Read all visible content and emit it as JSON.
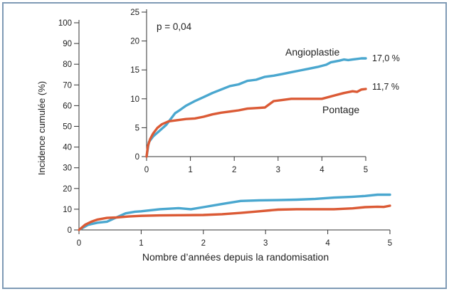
{
  "chart_data": {
    "type": "line",
    "colors": {
      "Angioplastie": "#4aa7cf",
      "Pontage": "#db5a35"
    },
    "main": {
      "ylabel": "Incidence cumulée (%)",
      "xlabel": "Nombre d’années depuis la randomisation",
      "xlim": [
        0,
        5
      ],
      "ylim": [
        0,
        100
      ],
      "x_ticks": [
        "0",
        "1",
        "2",
        "3",
        "4",
        "5"
      ],
      "y_ticks": [
        "0",
        "10",
        "20",
        "30",
        "40",
        "50",
        "60",
        "70",
        "80",
        "90",
        "100"
      ],
      "series": [
        {
          "key": "Angioplastie",
          "x": [
            0,
            0.15,
            0.3,
            0.45,
            0.6,
            0.75,
            0.9,
            1.0,
            1.3,
            1.6,
            1.8,
            2.0,
            2.3,
            2.6,
            2.9,
            3.2,
            3.5,
            3.8,
            4.1,
            4.4,
            4.6,
            4.8,
            5.0
          ],
          "y": [
            0,
            2.5,
            3.5,
            4.0,
            6.0,
            8.0,
            8.8,
            9.0,
            10.0,
            10.5,
            10.0,
            11.0,
            12.5,
            14.0,
            14.3,
            14.4,
            14.6,
            15.0,
            15.6,
            16.0,
            16.4,
            17.0,
            17.0
          ]
        },
        {
          "key": "Pontage",
          "x": [
            0,
            0.1,
            0.2,
            0.3,
            0.45,
            0.6,
            0.8,
            1.0,
            1.3,
            1.6,
            2.0,
            2.3,
            2.6,
            2.9,
            3.2,
            3.5,
            3.8,
            4.1,
            4.4,
            4.6,
            4.8,
            4.9,
            5.0
          ],
          "y": [
            0,
            2.5,
            4.0,
            5.0,
            5.8,
            6.0,
            6.5,
            6.8,
            7.0,
            7.1,
            7.2,
            7.6,
            8.2,
            9.0,
            9.8,
            10.0,
            10.0,
            10.0,
            10.4,
            11.0,
            11.2,
            11.1,
            11.7
          ]
        }
      ]
    },
    "inset": {
      "xlim": [
        0,
        5
      ],
      "ylim": [
        0,
        25
      ],
      "x_ticks": [
        "0",
        "1",
        "2",
        "3",
        "4",
        "5"
      ],
      "y_ticks": [
        "0",
        "5",
        "10",
        "15",
        "20",
        "25"
      ],
      "annotation": "p = 0,04",
      "series": [
        {
          "key": "Angioplastie",
          "name": "Angioplastie",
          "end_label": "17,0 %",
          "x": [
            0,
            0.05,
            0.15,
            0.3,
            0.45,
            0.55,
            0.65,
            0.75,
            0.9,
            1.1,
            1.3,
            1.5,
            1.7,
            1.9,
            2.1,
            2.3,
            2.5,
            2.7,
            2.9,
            3.1,
            3.3,
            3.5,
            3.7,
            3.9,
            4.1,
            4.2,
            4.4,
            4.5,
            4.6,
            4.7,
            4.8,
            4.9,
            5.0
          ],
          "y": [
            0,
            2.5,
            3.5,
            4.5,
            5.5,
            6.5,
            7.5,
            8.0,
            8.8,
            9.6,
            10.3,
            11.0,
            11.6,
            12.2,
            12.5,
            13.1,
            13.3,
            13.8,
            14.0,
            14.3,
            14.6,
            14.9,
            15.2,
            15.5,
            15.9,
            16.3,
            16.6,
            16.8,
            16.7,
            16.8,
            16.9,
            17.0,
            17.0
          ]
        },
        {
          "key": "Pontage",
          "name": "Pontage",
          "end_label": "11,7 %",
          "x": [
            0,
            0.03,
            0.08,
            0.15,
            0.25,
            0.35,
            0.5,
            0.7,
            0.9,
            1.1,
            1.3,
            1.5,
            1.7,
            1.9,
            2.1,
            2.3,
            2.5,
            2.7,
            2.9,
            3.1,
            3.3,
            3.5,
            3.7,
            3.9,
            4.0,
            4.1,
            4.3,
            4.5,
            4.7,
            4.8,
            4.9,
            5.0
          ],
          "y": [
            0,
            1.8,
            3.0,
            4.0,
            5.0,
            5.6,
            6.1,
            6.3,
            6.5,
            6.6,
            6.9,
            7.3,
            7.6,
            7.8,
            8.0,
            8.3,
            8.4,
            8.5,
            9.6,
            9.8,
            10.0,
            10.0,
            10.0,
            10.0,
            10.0,
            10.2,
            10.6,
            11.0,
            11.3,
            11.2,
            11.6,
            11.7
          ]
        }
      ]
    }
  }
}
